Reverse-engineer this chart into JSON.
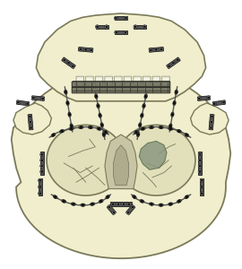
{
  "bg_color": "#ffffff",
  "skull_color": "#f0eecc",
  "skull_edge_color": "#7a7a5a",
  "plate_color": "#303030",
  "wire_color": "#404040",
  "orbit_fill": "#e8e6c0",
  "mesh_fill": "#8a9880",
  "figsize": [
    2.7,
    3.0
  ],
  "dpi": 100
}
